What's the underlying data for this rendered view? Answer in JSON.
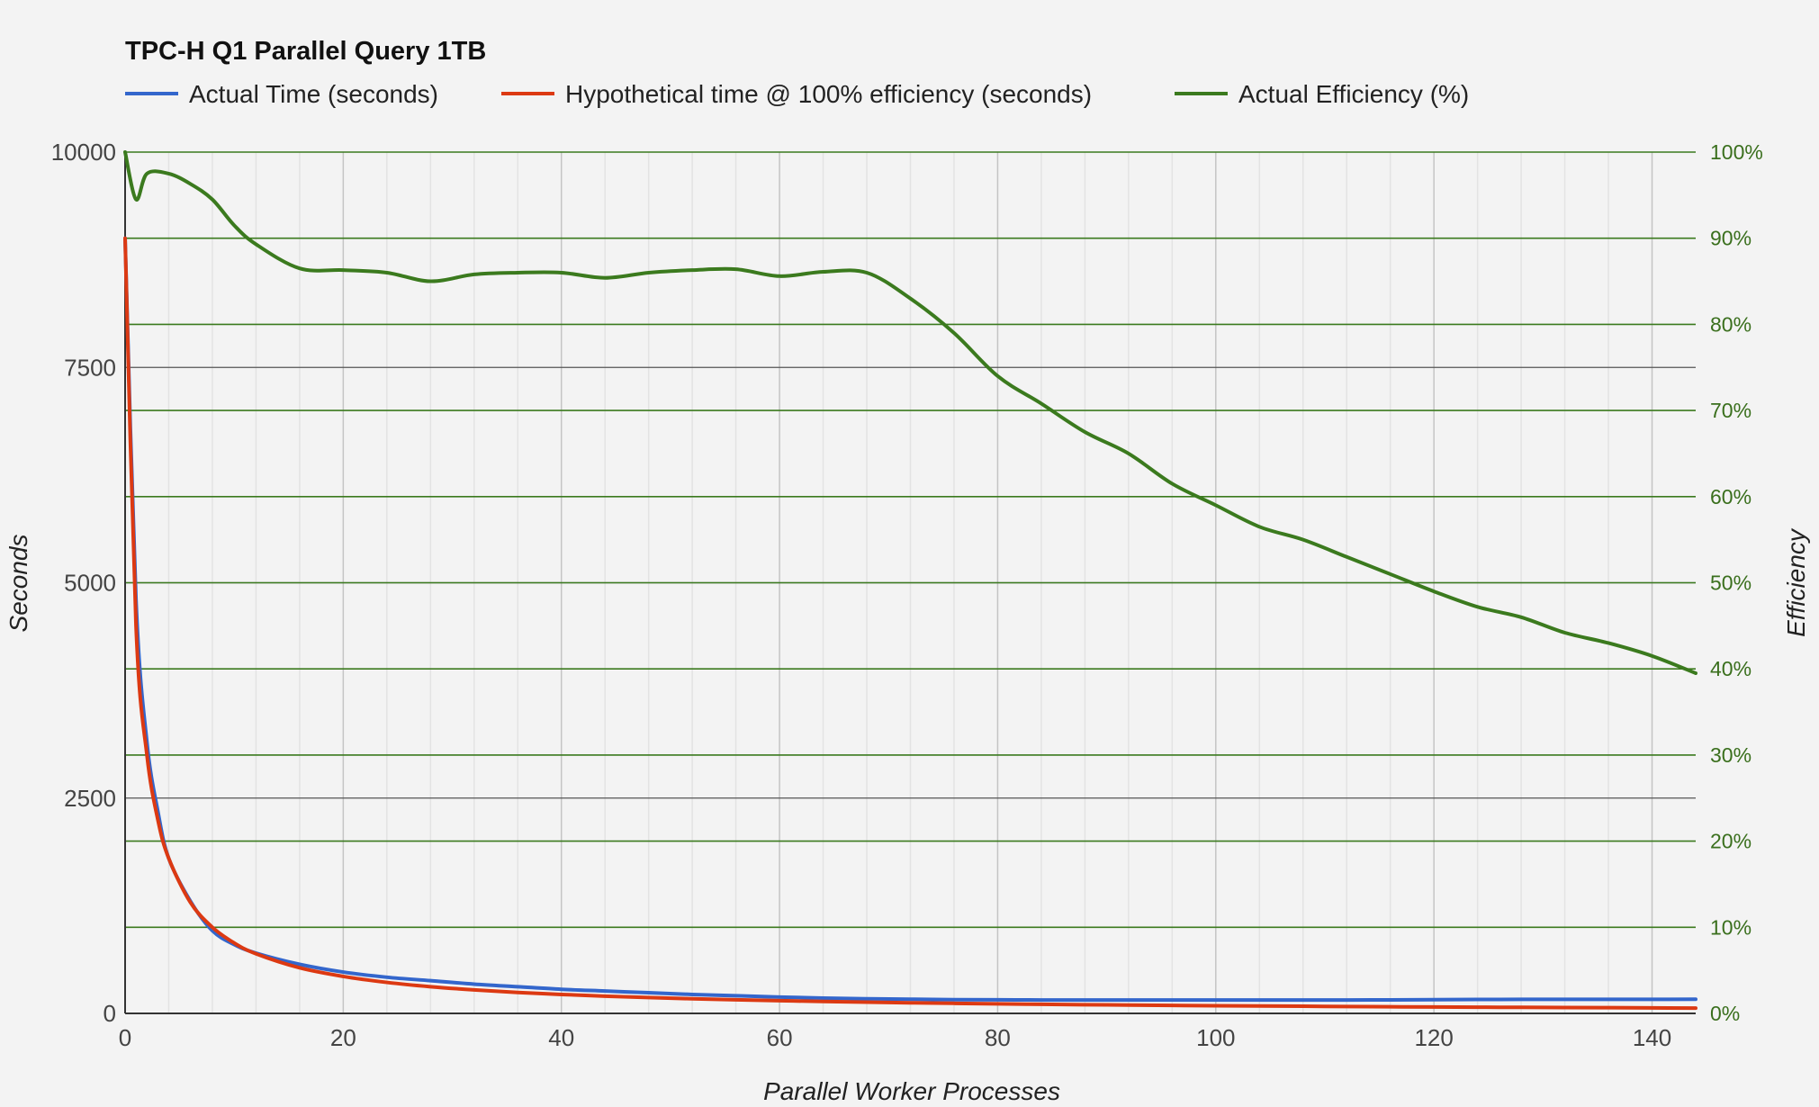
{
  "chart_data": {
    "type": "line",
    "title": "TPC-H Q1 Parallel Query 1TB",
    "xlabel": "Parallel Worker Processes",
    "ylabel": "Seconds",
    "y2label": "Efficiency",
    "xlim": [
      0,
      144
    ],
    "ylim": [
      0,
      10000
    ],
    "y2lim": [
      0,
      100
    ],
    "x_ticks": [
      "0",
      "20",
      "40",
      "60",
      "80",
      "100",
      "120",
      "140"
    ],
    "y_ticks": [
      "0",
      "2500",
      "5000",
      "7500",
      "10000"
    ],
    "y2_ticks": [
      "0%",
      "10%",
      "20%",
      "30%",
      "40%",
      "50%",
      "60%",
      "70%",
      "80%",
      "90%",
      "100%"
    ],
    "legend_position": "top",
    "grid": true,
    "series": [
      {
        "name": "Actual Time (seconds)",
        "axis": "left",
        "color": "#3366cc",
        "x": [
          0,
          1,
          2,
          3,
          4,
          6,
          8,
          10,
          12,
          16,
          20,
          24,
          28,
          32,
          36,
          40,
          44,
          48,
          52,
          56,
          60,
          64,
          68,
          72,
          76,
          80,
          84,
          88,
          92,
          96,
          100,
          104,
          108,
          112,
          116,
          120,
          124,
          128,
          132,
          136,
          140,
          144
        ],
        "values": [
          9000,
          4800,
          3150,
          2350,
          1800,
          1300,
          960,
          800,
          700,
          570,
          480,
          420,
          380,
          340,
          310,
          280,
          260,
          240,
          220,
          205,
          190,
          178,
          170,
          165,
          160,
          158,
          156,
          155,
          155,
          155,
          155,
          155,
          155,
          155,
          157,
          160,
          162,
          163,
          163,
          163,
          163,
          165
        ]
      },
      {
        "name": "Hypothetical time @ 100% efficiency (seconds)",
        "axis": "left",
        "color": "#dc3912",
        "x": [
          0,
          1,
          2,
          3,
          4,
          6,
          8,
          10,
          12,
          16,
          20,
          24,
          28,
          32,
          36,
          40,
          44,
          48,
          52,
          56,
          60,
          64,
          68,
          72,
          76,
          80,
          84,
          88,
          92,
          96,
          100,
          104,
          108,
          112,
          116,
          120,
          124,
          128,
          132,
          136,
          140,
          144
        ],
        "values": [
          9000,
          4500,
          3000,
          2250,
          1800,
          1286,
          1000,
          818,
          692,
          529,
          429,
          360,
          310,
          273,
          243,
          220,
          200,
          184,
          170,
          158,
          148,
          138,
          130,
          123,
          117,
          111,
          106,
          101,
          97,
          93,
          89,
          86,
          83,
          80,
          77,
          74,
          72,
          70,
          68,
          66,
          64,
          62
        ]
      },
      {
        "name": "Actual Efficiency (%)",
        "axis": "right",
        "color": "#3b7a1e",
        "x": [
          0,
          1,
          2,
          4,
          6,
          8,
          10,
          12,
          16,
          20,
          24,
          28,
          32,
          36,
          40,
          44,
          48,
          52,
          56,
          60,
          64,
          68,
          72,
          76,
          80,
          84,
          88,
          92,
          96,
          100,
          104,
          108,
          112,
          116,
          120,
          124,
          128,
          132,
          136,
          140,
          144
        ],
        "values": [
          100,
          94.5,
          97.5,
          97.5,
          96.3,
          94.5,
          91.5,
          89.3,
          86.5,
          86.3,
          86,
          85,
          85.8,
          86,
          86,
          85.4,
          86,
          86.3,
          86.4,
          85.6,
          86.1,
          86,
          83,
          79,
          74,
          70.8,
          67.5,
          65,
          61.5,
          59,
          56.5,
          55,
          53,
          51,
          49,
          47.2,
          46,
          44.2,
          43,
          41.5,
          39.5
        ]
      }
    ]
  }
}
